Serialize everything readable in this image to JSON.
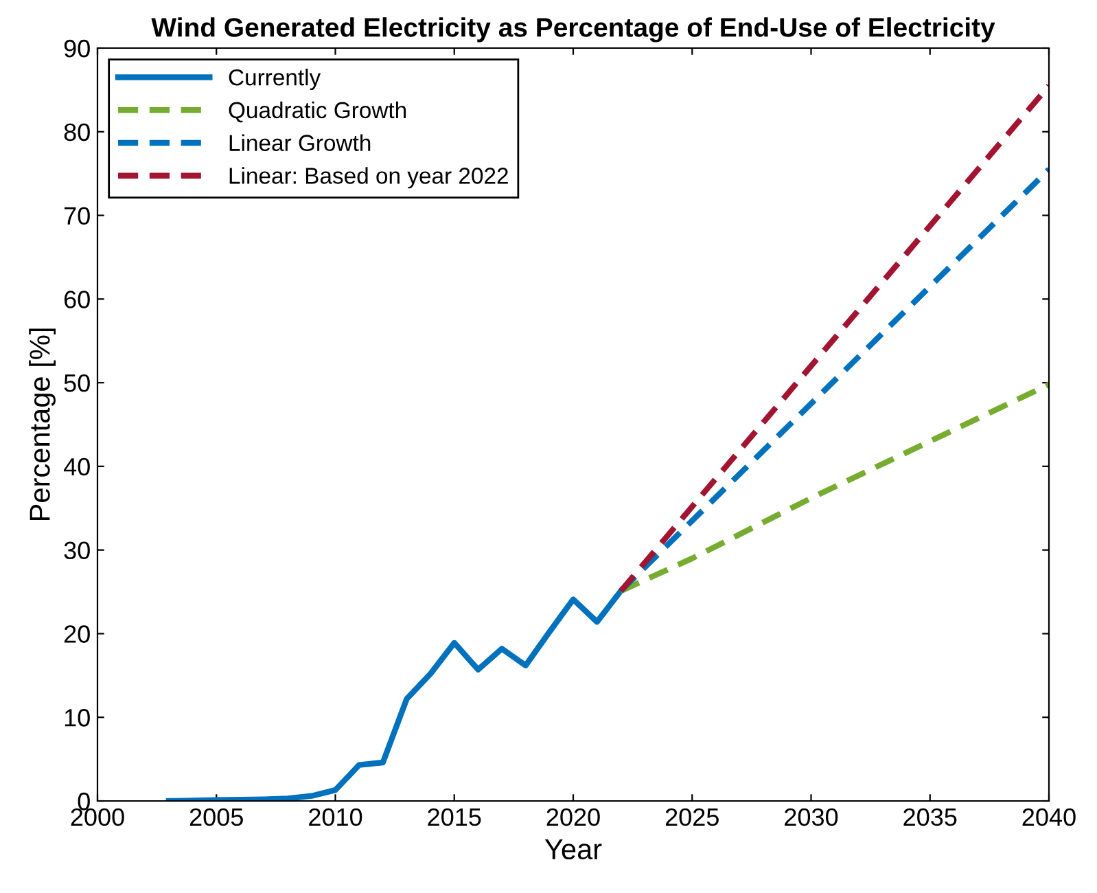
{
  "chart_data": {
    "type": "line",
    "title": "Wind Generated Electricity as Percentage of End-Use of Electricity",
    "xlabel": "Year",
    "ylabel": "Percentage [%]",
    "xlim": [
      2000,
      2040
    ],
    "xticks": [
      2000,
      2005,
      2010,
      2015,
      2020,
      2025,
      2030,
      2035,
      2040
    ],
    "ylim": [
      0,
      90
    ],
    "yticks": [
      0,
      10,
      20,
      30,
      40,
      50,
      60,
      70,
      80,
      90
    ],
    "grid": false,
    "legend": "top left",
    "series": [
      {
        "name": "Currently",
        "color": "#0072bd",
        "line_style": "solid",
        "x": [
          2003,
          2004,
          2005,
          2006,
          2007,
          2008,
          2009,
          2010,
          2011,
          2012,
          2013,
          2014,
          2015,
          2016,
          2017,
          2018,
          2019,
          2020,
          2021,
          2022
        ],
        "values": [
          0,
          0.05,
          0.1,
          0.15,
          0.2,
          0.3,
          0.6,
          1.3,
          4.3,
          4.6,
          12.2,
          15.2,
          18.9,
          15.7,
          18.2,
          16.2,
          20.2,
          24.1,
          21.4,
          25.1
        ]
      },
      {
        "name": "Quadratic Growth",
        "color": "#77ac30",
        "line_style": "dashed",
        "x": [
          2022,
          2025,
          2030,
          2035,
          2040
        ],
        "values": [
          25.1,
          29,
          36.2,
          43,
          49.8
        ]
      },
      {
        "name": "Linear Growth",
        "color": "#0072bd",
        "line_style": "dashed",
        "x": [
          2022,
          2030,
          2040
        ],
        "values": [
          25.1,
          47.5,
          75.5
        ]
      },
      {
        "name": "Linear: Based on year 2022",
        "color": "#a2142f",
        "line_style": "dashed",
        "x": [
          2022,
          2030,
          2040
        ],
        "values": [
          25.1,
          52,
          85.5
        ]
      }
    ]
  }
}
